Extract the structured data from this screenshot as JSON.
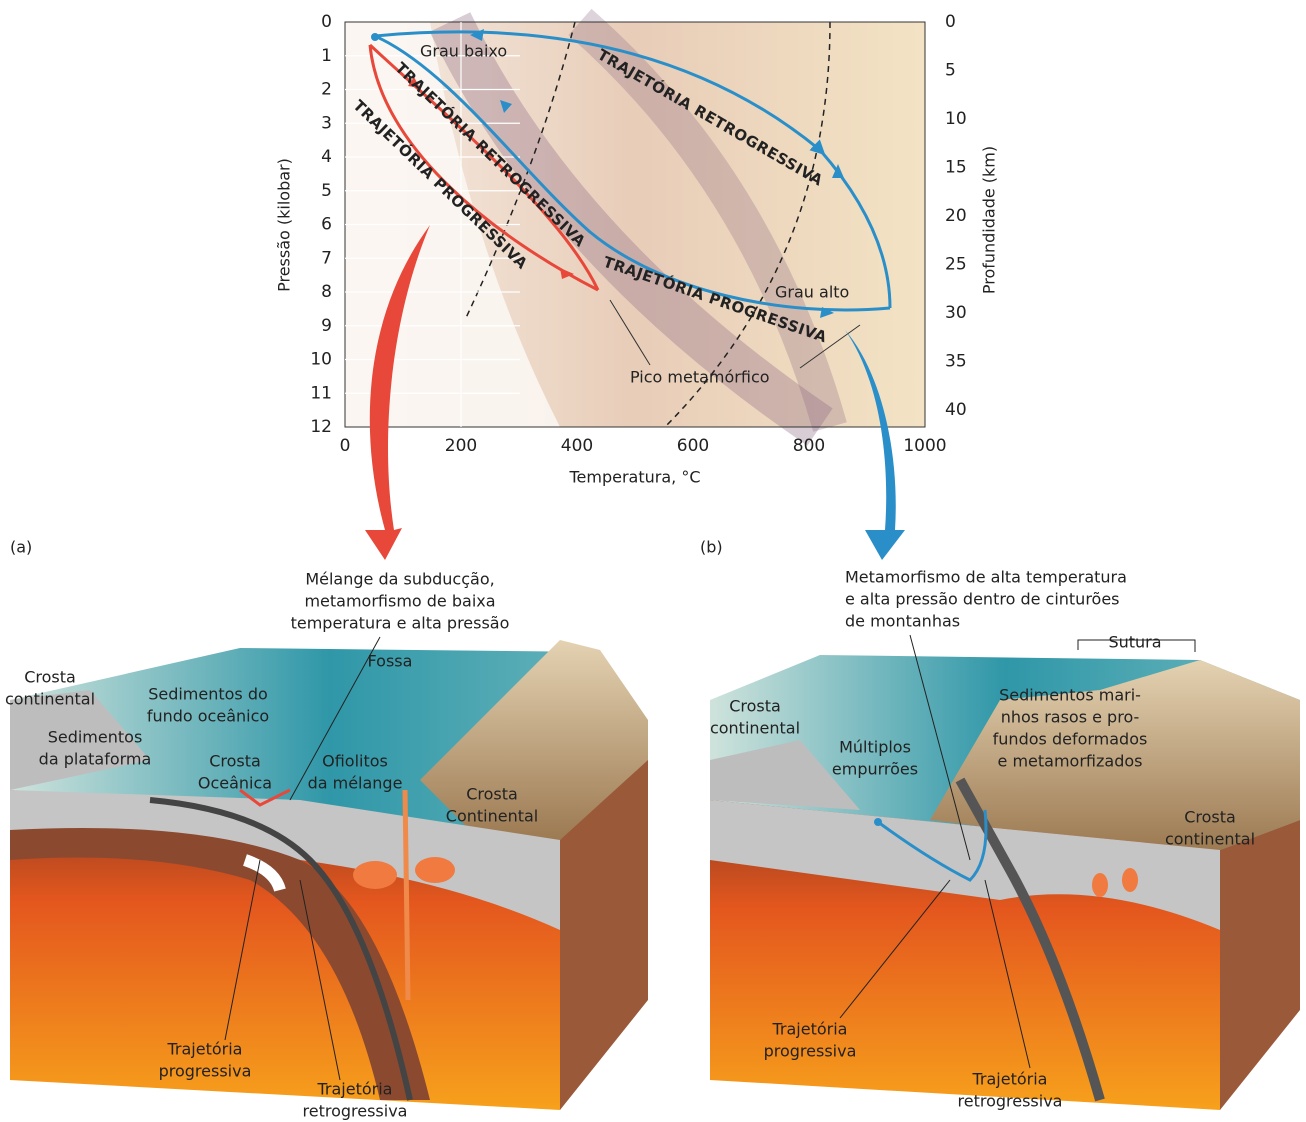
{
  "pt_diagram": {
    "y_axis": {
      "label": "Pressão (kilobar)",
      "ticks": [
        0,
        1,
        2,
        3,
        4,
        5,
        6,
        7,
        8,
        9,
        10,
        11,
        12
      ]
    },
    "y2_axis": {
      "label": "Profundidade (km)",
      "ticks": [
        0,
        5,
        10,
        15,
        20,
        25,
        30,
        35,
        40
      ]
    },
    "x_axis": {
      "label": "Temperatura, °C",
      "ticks": [
        0,
        200,
        400,
        600,
        800,
        1000
      ]
    },
    "path_labels": [
      "TRAJETÓRIA RETROGRESSIVA",
      "TRAJETÓRIA RETROGRESSIVA",
      "TRAJETÓRIA PROGRESSIVA",
      "TRAJETÓRIA PROGRESSIVA"
    ],
    "annotations": [
      "Grau baixo",
      "Grau alto",
      "Pico metamórfico"
    ]
  },
  "panel_a": {
    "tag": "(a)",
    "caption": [
      "Mélange da subducção,",
      "metamorfismo de baixa",
      "temperatura e alta pressão"
    ],
    "labels": [
      [
        "Fossa"
      ],
      [
        "Crosta",
        "continental"
      ],
      [
        "Sedimentos do",
        "fundo oceânico"
      ],
      [
        "Sedimentos",
        "da plataforma"
      ],
      [
        "Crosta",
        "Oceânica"
      ],
      [
        "Ofiolitos",
        "da mélange"
      ],
      [
        "Crosta",
        "Continental"
      ],
      [
        "Trajetória",
        "progressiva"
      ],
      [
        "Trajetória",
        "retrogressiva"
      ]
    ]
  },
  "panel_b": {
    "tag": "(b)",
    "caption": [
      "Metamorfismo de alta temperatura",
      "e alta pressão dentro de cinturões",
      "de montanhas"
    ],
    "labels": [
      [
        "Sutura"
      ],
      [
        "Crosta",
        "continental"
      ],
      [
        "Sedimentos mari-",
        "nhos rasos e pro-",
        "fundos deformados",
        "e metamorfizados"
      ],
      [
        "Múltiplos",
        "empurrões"
      ],
      [
        "Crosta",
        "continental"
      ],
      [
        "Trajetória",
        "progressiva"
      ],
      [
        "Trajetória",
        "retrogressiva"
      ]
    ]
  }
}
